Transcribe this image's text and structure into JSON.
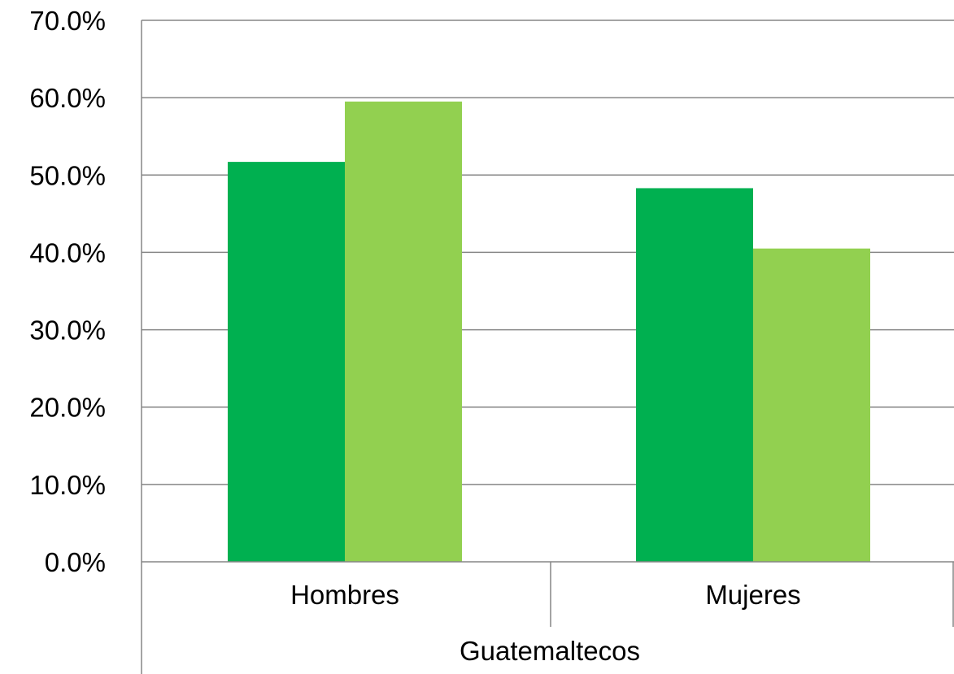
{
  "chart_data": {
    "type": "bar",
    "categories": [
      "Hombres",
      "Mujeres"
    ],
    "group_label": "Guatemaltecos",
    "series": [
      {
        "color": "#00b050",
        "values": [
          51.7,
          48.3
        ]
      },
      {
        "color": "#92d050",
        "values": [
          59.5,
          40.5
        ]
      }
    ],
    "ylim": [
      0,
      70
    ],
    "y_ticks": [
      "0.0%",
      "10.0%",
      "20.0%",
      "30.0%",
      "40.0%",
      "50.0%",
      "60.0%",
      "70.0%"
    ],
    "y_tick_values": [
      0,
      10,
      20,
      30,
      40,
      50,
      60,
      70
    ],
    "grid": true,
    "gridline_color": "#868686",
    "title": "",
    "xlabel": "",
    "ylabel": ""
  }
}
